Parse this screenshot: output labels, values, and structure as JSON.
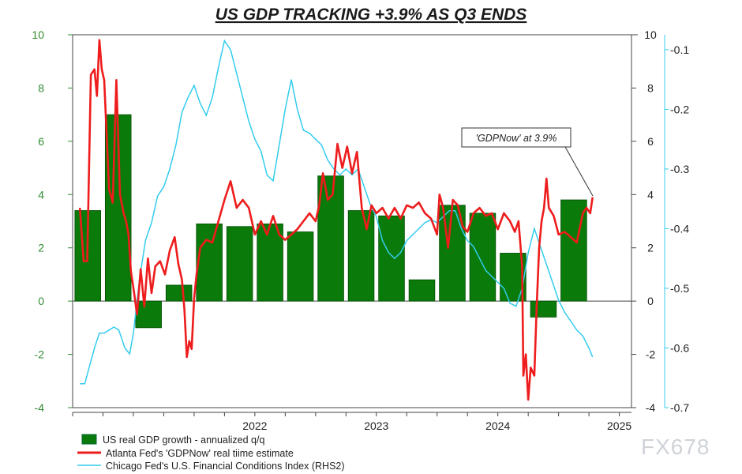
{
  "chart_data": {
    "type": "bar",
    "title": "US GDP TRACKING +3.9% AS Q3 ENDS",
    "colors": {
      "gdp": "#0a7a0a",
      "gdpnow": "#ee1c1c",
      "nfci": "#33ccee",
      "left_axis": "#2e8b2e",
      "right_axis": "#33ccee",
      "grid": "#444444"
    },
    "x_labels": [
      "2022",
      "2023",
      "2024",
      "2025"
    ],
    "x_label_values": [
      2022.0,
      2023.0,
      2024.0,
      2025.0
    ],
    "xlim": [
      2021.0,
      2025.6
    ],
    "ylim_left": [
      -4,
      10
    ],
    "yticks_left": [
      -4,
      -2,
      0,
      2,
      4,
      6,
      8,
      10
    ],
    "yticks_right": [
      -4,
      -2,
      0,
      2,
      4,
      6,
      8,
      10
    ],
    "ylim_rhs2": [
      -0.7,
      -0.075
    ],
    "yticks_rhs2": [
      -0.1,
      -0.2,
      -0.3,
      -0.4,
      -0.5,
      -0.6,
      -0.7
    ],
    "legend": [
      "US real GDP growth - annualized q/q",
      "Atlanta Fed's 'GDPNow' real tiime estimate",
      "Chicago Fed's U.S. Financial Conditions Index (RHS2)"
    ],
    "annotation": "'GDPNow' at 3.9%",
    "watermark": "FX678",
    "series": [
      {
        "name": "US real GDP growth - annualized q/q",
        "kind": "bar",
        "points": [
          [
            2021.0,
            3.4
          ],
          [
            2021.25,
            7.0
          ],
          [
            2021.5,
            -1.0
          ],
          [
            2021.75,
            0.6
          ],
          [
            2022.0,
            2.9
          ],
          [
            2022.25,
            2.8
          ],
          [
            2022.5,
            2.9
          ],
          [
            2022.75,
            2.6
          ],
          [
            2023.0,
            4.7
          ],
          [
            2023.25,
            3.4
          ],
          [
            2023.5,
            3.2
          ],
          [
            2023.75,
            0.8
          ],
          [
            2024.0,
            3.6
          ],
          [
            2024.25,
            3.3
          ],
          [
            2024.5,
            1.8
          ],
          [
            2024.75,
            -0.6
          ],
          [
            2025.0,
            3.8
          ]
        ]
      },
      {
        "name": "Atlanta Fed's 'GDPNow' real tiime estimate",
        "kind": "line",
        "points": [
          [
            2021.06,
            3.5
          ],
          [
            2021.09,
            1.5
          ],
          [
            2021.12,
            1.5
          ],
          [
            2021.15,
            8.5
          ],
          [
            2021.18,
            8.7
          ],
          [
            2021.2,
            7.7
          ],
          [
            2021.22,
            9.8
          ],
          [
            2021.24,
            8.7
          ],
          [
            2021.26,
            8.3
          ],
          [
            2021.3,
            4.2
          ],
          [
            2021.33,
            3.7
          ],
          [
            2021.36,
            8.3
          ],
          [
            2021.39,
            4.0
          ],
          [
            2021.42,
            3.3
          ],
          [
            2021.44,
            3.0
          ],
          [
            2021.46,
            2.5
          ],
          [
            2021.48,
            1.1
          ],
          [
            2021.5,
            0.5
          ],
          [
            2021.53,
            -0.5
          ],
          [
            2021.56,
            1.2
          ],
          [
            2021.59,
            -0.2
          ],
          [
            2021.62,
            1.6
          ],
          [
            2021.65,
            0.3
          ],
          [
            2021.68,
            1.3
          ],
          [
            2021.72,
            1.5
          ],
          [
            2021.76,
            1.0
          ],
          [
            2021.8,
            1.9
          ],
          [
            2021.84,
            2.4
          ],
          [
            2021.87,
            1.4
          ],
          [
            2021.9,
            0.8
          ],
          [
            2021.92,
            -0.3
          ],
          [
            2021.94,
            -2.1
          ],
          [
            2021.96,
            -1.5
          ],
          [
            2021.98,
            -1.8
          ],
          [
            2022.0,
            0.1
          ],
          [
            2022.02,
            1.0
          ],
          [
            2022.05,
            2.0
          ],
          [
            2022.1,
            2.3
          ],
          [
            2022.15,
            2.2
          ],
          [
            2022.2,
            3.0
          ],
          [
            2022.25,
            3.8
          ],
          [
            2022.3,
            4.5
          ],
          [
            2022.35,
            3.5
          ],
          [
            2022.4,
            3.8
          ],
          [
            2022.45,
            3.5
          ],
          [
            2022.5,
            2.5
          ],
          [
            2022.55,
            3.0
          ],
          [
            2022.6,
            2.5
          ],
          [
            2022.65,
            3.2
          ],
          [
            2022.7,
            2.5
          ],
          [
            2022.75,
            2.3
          ],
          [
            2022.8,
            2.5
          ],
          [
            2022.85,
            2.7
          ],
          [
            2022.9,
            3.0
          ],
          [
            2022.95,
            3.3
          ],
          [
            2023.0,
            3.0
          ],
          [
            2023.03,
            3.6
          ],
          [
            2023.06,
            4.8
          ],
          [
            2023.1,
            3.8
          ],
          [
            2023.14,
            4.0
          ],
          [
            2023.18,
            5.9
          ],
          [
            2023.22,
            5.0
          ],
          [
            2023.26,
            5.8
          ],
          [
            2023.3,
            4.8
          ],
          [
            2023.34,
            5.6
          ],
          [
            2023.38,
            3.5
          ],
          [
            2023.42,
            2.7
          ],
          [
            2023.46,
            3.6
          ],
          [
            2023.5,
            3.3
          ],
          [
            2023.55,
            3.5
          ],
          [
            2023.6,
            3.1
          ],
          [
            2023.65,
            3.5
          ],
          [
            2023.7,
            3.1
          ],
          [
            2023.75,
            3.6
          ],
          [
            2023.8,
            3.5
          ],
          [
            2023.85,
            3.7
          ],
          [
            2023.9,
            3.3
          ],
          [
            2023.95,
            3.1
          ],
          [
            2024.0,
            2.5
          ],
          [
            2024.02,
            4.0
          ],
          [
            2024.05,
            3.5
          ],
          [
            2024.09,
            2.0
          ],
          [
            2024.13,
            3.8
          ],
          [
            2024.17,
            3.6
          ],
          [
            2024.21,
            2.8
          ],
          [
            2024.25,
            2.6
          ],
          [
            2024.3,
            3.3
          ],
          [
            2024.35,
            3.5
          ],
          [
            2024.4,
            3.2
          ],
          [
            2024.45,
            3.3
          ],
          [
            2024.5,
            2.7
          ],
          [
            2024.55,
            3.3
          ],
          [
            2024.6,
            3.0
          ],
          [
            2024.64,
            2.6
          ],
          [
            2024.67,
            3.0
          ],
          [
            2024.7,
            1.3
          ],
          [
            2024.71,
            -2.8
          ],
          [
            2024.73,
            -2.0
          ],
          [
            2024.75,
            -3.7
          ],
          [
            2024.77,
            -2.5
          ],
          [
            2024.8,
            -2.8
          ],
          [
            2024.82,
            -0.2
          ],
          [
            2024.84,
            2.0
          ],
          [
            2024.86,
            3.0
          ],
          [
            2024.88,
            3.5
          ],
          [
            2024.9,
            4.6
          ],
          [
            2024.92,
            3.5
          ],
          [
            2024.96,
            3.2
          ],
          [
            2025.0,
            2.5
          ],
          [
            2025.05,
            2.6
          ],
          [
            2025.1,
            2.4
          ],
          [
            2025.15,
            2.2
          ],
          [
            2025.2,
            3.3
          ],
          [
            2025.23,
            3.5
          ],
          [
            2025.26,
            3.3
          ],
          [
            2025.28,
            3.9
          ]
        ]
      },
      {
        "name": "Chicago Fed's U.S. Financial Conditions Index (RHS2)",
        "kind": "line",
        "axis": "rhs2",
        "points": [
          [
            2021.06,
            -0.66
          ],
          [
            2021.1,
            -0.66
          ],
          [
            2021.14,
            -0.63
          ],
          [
            2021.18,
            -0.6
          ],
          [
            2021.22,
            -0.575
          ],
          [
            2021.26,
            -0.575
          ],
          [
            2021.3,
            -0.57
          ],
          [
            2021.34,
            -0.565
          ],
          [
            2021.38,
            -0.57
          ],
          [
            2021.43,
            -0.6
          ],
          [
            2021.47,
            -0.61
          ],
          [
            2021.5,
            -0.575
          ],
          [
            2021.55,
            -0.485
          ],
          [
            2021.6,
            -0.42
          ],
          [
            2021.65,
            -0.39
          ],
          [
            2021.7,
            -0.345
          ],
          [
            2021.75,
            -0.33
          ],
          [
            2021.8,
            -0.3
          ],
          [
            2021.85,
            -0.26
          ],
          [
            2021.9,
            -0.205
          ],
          [
            2021.95,
            -0.18
          ],
          [
            2022.0,
            -0.16
          ],
          [
            2022.05,
            -0.19
          ],
          [
            2022.1,
            -0.21
          ],
          [
            2022.15,
            -0.18
          ],
          [
            2022.2,
            -0.13
          ],
          [
            2022.25,
            -0.085
          ],
          [
            2022.3,
            -0.1
          ],
          [
            2022.35,
            -0.14
          ],
          [
            2022.4,
            -0.18
          ],
          [
            2022.45,
            -0.22
          ],
          [
            2022.5,
            -0.25
          ],
          [
            2022.55,
            -0.27
          ],
          [
            2022.6,
            -0.31
          ],
          [
            2022.65,
            -0.32
          ],
          [
            2022.7,
            -0.26
          ],
          [
            2022.75,
            -0.2
          ],
          [
            2022.8,
            -0.15
          ],
          [
            2022.85,
            -0.2
          ],
          [
            2022.9,
            -0.235
          ],
          [
            2022.95,
            -0.24
          ],
          [
            2023.0,
            -0.25
          ],
          [
            2023.05,
            -0.26
          ],
          [
            2023.1,
            -0.285
          ],
          [
            2023.15,
            -0.3
          ],
          [
            2023.2,
            -0.31
          ],
          [
            2023.25,
            -0.3
          ],
          [
            2023.3,
            -0.31
          ],
          [
            2023.35,
            -0.3
          ],
          [
            2023.4,
            -0.33
          ],
          [
            2023.45,
            -0.36
          ],
          [
            2023.5,
            -0.38
          ],
          [
            2023.55,
            -0.42
          ],
          [
            2023.6,
            -0.44
          ],
          [
            2023.65,
            -0.45
          ],
          [
            2023.7,
            -0.44
          ],
          [
            2023.75,
            -0.42
          ],
          [
            2023.8,
            -0.41
          ],
          [
            2023.85,
            -0.4
          ],
          [
            2023.9,
            -0.39
          ],
          [
            2023.95,
            -0.385
          ],
          [
            2024.0,
            -0.39
          ],
          [
            2024.05,
            -0.38
          ],
          [
            2024.1,
            -0.37
          ],
          [
            2024.15,
            -0.37
          ],
          [
            2024.2,
            -0.4
          ],
          [
            2024.25,
            -0.42
          ],
          [
            2024.3,
            -0.43
          ],
          [
            2024.35,
            -0.45
          ],
          [
            2024.4,
            -0.47
          ],
          [
            2024.45,
            -0.48
          ],
          [
            2024.5,
            -0.49
          ],
          [
            2024.55,
            -0.5
          ],
          [
            2024.6,
            -0.525
          ],
          [
            2024.65,
            -0.53
          ],
          [
            2024.7,
            -0.5
          ],
          [
            2024.75,
            -0.44
          ],
          [
            2024.8,
            -0.4
          ],
          [
            2024.85,
            -0.43
          ],
          [
            2024.9,
            -0.46
          ],
          [
            2024.95,
            -0.49
          ],
          [
            2025.0,
            -0.52
          ],
          [
            2025.05,
            -0.54
          ],
          [
            2025.1,
            -0.555
          ],
          [
            2025.15,
            -0.57
          ],
          [
            2025.2,
            -0.58
          ],
          [
            2025.25,
            -0.6
          ],
          [
            2025.28,
            -0.615
          ]
        ]
      }
    ]
  }
}
